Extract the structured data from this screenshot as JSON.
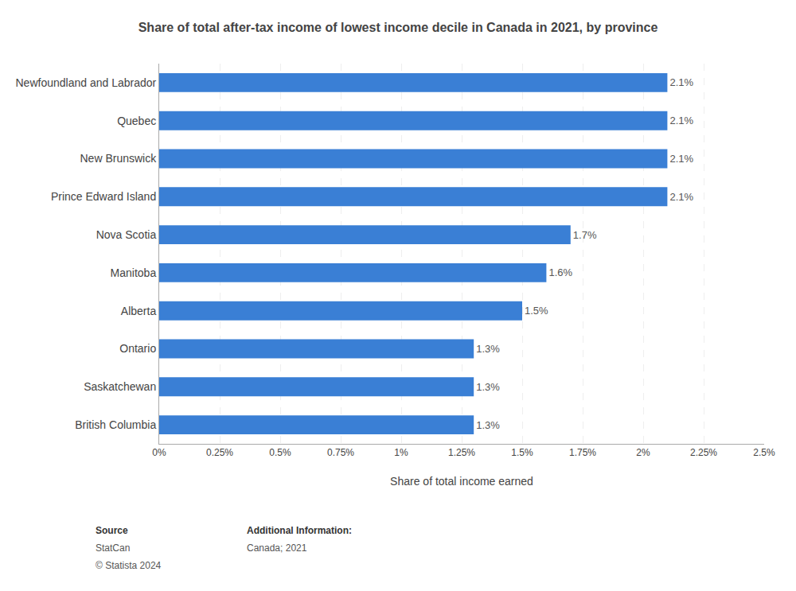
{
  "chart_data": {
    "type": "bar",
    "orientation": "horizontal",
    "title": "Share of total after-tax income of lowest income decile in Canada in 2021, by province",
    "xlabel": "Share of total income earned",
    "categories": [
      "Newfoundland and Labrador",
      "Quebec",
      "New Brunswick",
      "Prince Edward Island",
      "Nova Scotia",
      "Manitoba",
      "Alberta",
      "Ontario",
      "Saskatchewan",
      "British Columbia"
    ],
    "values": [
      2.1,
      2.1,
      2.1,
      2.1,
      1.7,
      1.6,
      1.5,
      1.3,
      1.3,
      1.3
    ],
    "value_labels": [
      "2.1%",
      "2.1%",
      "2.1%",
      "2.1%",
      "1.7%",
      "1.6%",
      "1.5%",
      "1.3%",
      "1.3%",
      "1.3%"
    ],
    "data_labels": true,
    "color": "#3a7fd5",
    "xlim": [
      0,
      2.5
    ],
    "xticks": [
      {
        "value": 0,
        "label": "0%"
      },
      {
        "value": 0.25,
        "label": "0.25%"
      },
      {
        "value": 0.5,
        "label": "0.5%"
      },
      {
        "value": 0.75,
        "label": "0.75%"
      },
      {
        "value": 1,
        "label": "1%"
      },
      {
        "value": 1.25,
        "label": "1.25%"
      },
      {
        "value": 1.5,
        "label": "1.5%"
      },
      {
        "value": 1.75,
        "label": "1.75%"
      },
      {
        "value": 2,
        "label": "2%"
      },
      {
        "value": 2.25,
        "label": "2.25%"
      },
      {
        "value": 2.5,
        "label": "2.5%"
      }
    ],
    "grid": true,
    "annotations": [
      "Source",
      "StatCan",
      "© Statista 2024",
      "Additional Information:",
      "Canada; 2021"
    ]
  }
}
